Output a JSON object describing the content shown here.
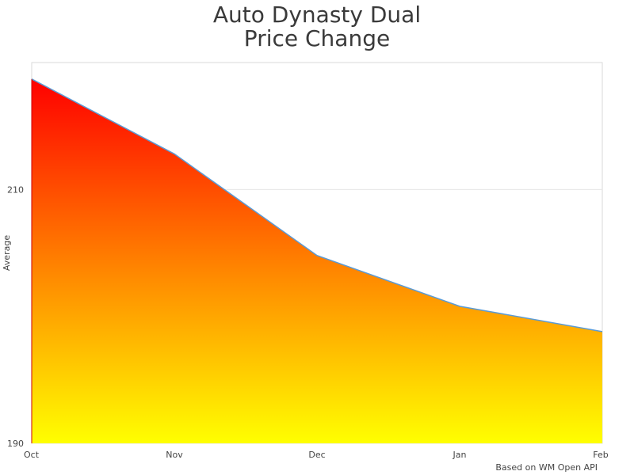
{
  "chart_data": {
    "type": "area",
    "title": [
      "Auto Dynasty Dual",
      "Price Change"
    ],
    "xlabel": "",
    "ylabel": "Average",
    "categories": [
      "Oct",
      "Nov",
      "Dec",
      "Jan",
      "Feb"
    ],
    "series": [
      {
        "values": [
          218.7,
          212.8,
          204.8,
          200.8,
          198.8
        ]
      }
    ],
    "ylim": [
      190,
      220
    ],
    "yticks": [
      190,
      210
    ],
    "grid": true,
    "legend": "none",
    "colors": {
      "line": "#5b9bd5",
      "gradient_top": "#ff0000",
      "gradient_bottom": "#ffff00",
      "grid": "#e6e6e6"
    },
    "credit": "Based on WM Open API"
  }
}
